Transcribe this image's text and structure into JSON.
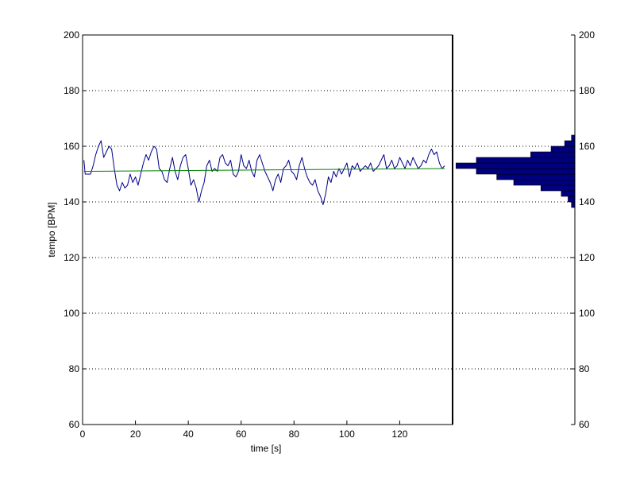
{
  "chart_data": [
    {
      "type": "line",
      "xlabel": "time [s]",
      "ylabel": "tempo [BPM]",
      "xlim": [
        0,
        140
      ],
      "ylim": [
        60,
        200
      ],
      "xticks": [
        0,
        20,
        40,
        60,
        80,
        100,
        120
      ],
      "yticks": [
        60,
        80,
        100,
        120,
        140,
        160,
        180,
        200
      ],
      "grid": "horizontal-dotted",
      "series": [
        {
          "color": "#00008B",
          "x": [
            0.5,
            1,
            2,
            3,
            4,
            5,
            6,
            7,
            8,
            9,
            10,
            11,
            12,
            13,
            14,
            15,
            16,
            17,
            18,
            19,
            20,
            21,
            22,
            23,
            24,
            25,
            26,
            27,
            28,
            29,
            30,
            31,
            32,
            33,
            34,
            35,
            36,
            37,
            38,
            39,
            40,
            41,
            42,
            43,
            44,
            45,
            46,
            47,
            48,
            49,
            50,
            51,
            52,
            53,
            54,
            55,
            56,
            57,
            58,
            59,
            60,
            61,
            62,
            63,
            64,
            65,
            66,
            67,
            68,
            69,
            70,
            71,
            72,
            73,
            74,
            75,
            76,
            77,
            78,
            79,
            80,
            81,
            82,
            83,
            84,
            85,
            86,
            87,
            88,
            89,
            90,
            91,
            92,
            93,
            94,
            95,
            96,
            97,
            98,
            99,
            100,
            101,
            102,
            103,
            104,
            105,
            106,
            107,
            108,
            109,
            110,
            111,
            112,
            113,
            114,
            115,
            116,
            117,
            118,
            119,
            120,
            121,
            122,
            123,
            124,
            125,
            126,
            127,
            128,
            129,
            130,
            131,
            132,
            133,
            134,
            135,
            136,
            137
          ],
          "y": [
            155,
            150,
            150,
            150,
            153,
            157,
            160,
            162,
            156,
            158,
            160,
            159,
            152,
            146,
            144,
            147,
            145,
            146,
            150,
            147,
            149,
            146,
            150,
            154,
            157,
            155,
            158,
            160,
            159,
            152,
            151,
            148,
            147,
            152,
            156,
            151,
            148,
            153,
            156,
            157,
            152,
            146,
            148,
            145,
            140,
            144,
            147,
            153,
            155,
            151,
            152,
            151,
            156,
            157,
            154,
            153,
            155,
            150,
            149,
            151,
            157,
            153,
            152,
            155,
            151,
            149,
            155,
            157,
            154,
            151,
            149,
            147,
            144,
            148,
            150,
            147,
            152,
            153,
            155,
            151,
            150,
            148,
            153,
            156,
            152,
            149,
            147,
            146,
            148,
            144,
            142,
            139,
            143,
            149,
            147,
            151,
            149,
            152,
            150,
            152,
            154,
            149,
            153,
            152,
            154,
            151,
            152,
            153,
            152,
            154,
            151,
            152,
            153,
            155,
            157,
            152,
            153,
            155,
            152,
            153,
            156,
            154,
            152,
            155,
            153,
            156,
            154,
            152,
            153,
            155,
            154,
            157,
            159,
            157,
            158,
            154,
            152,
            153
          ]
        },
        {
          "color": "#007F00",
          "x": [
            0.5,
            137
          ],
          "y": [
            151,
            152
          ]
        }
      ]
    },
    {
      "type": "bar",
      "orientation": "horizontal",
      "ylim": [
        60,
        200
      ],
      "yticks": [
        60,
        80,
        100,
        120,
        140,
        160,
        180,
        200
      ],
      "bar_color": "#00007F",
      "categories": [
        139,
        141,
        143,
        145,
        147,
        149,
        151,
        153,
        155,
        157,
        159,
        161,
        163
      ],
      "values": [
        1,
        2,
        4,
        10,
        18,
        23,
        29,
        35,
        29,
        13,
        7,
        3,
        1
      ],
      "xlim": [
        0,
        36
      ]
    }
  ]
}
